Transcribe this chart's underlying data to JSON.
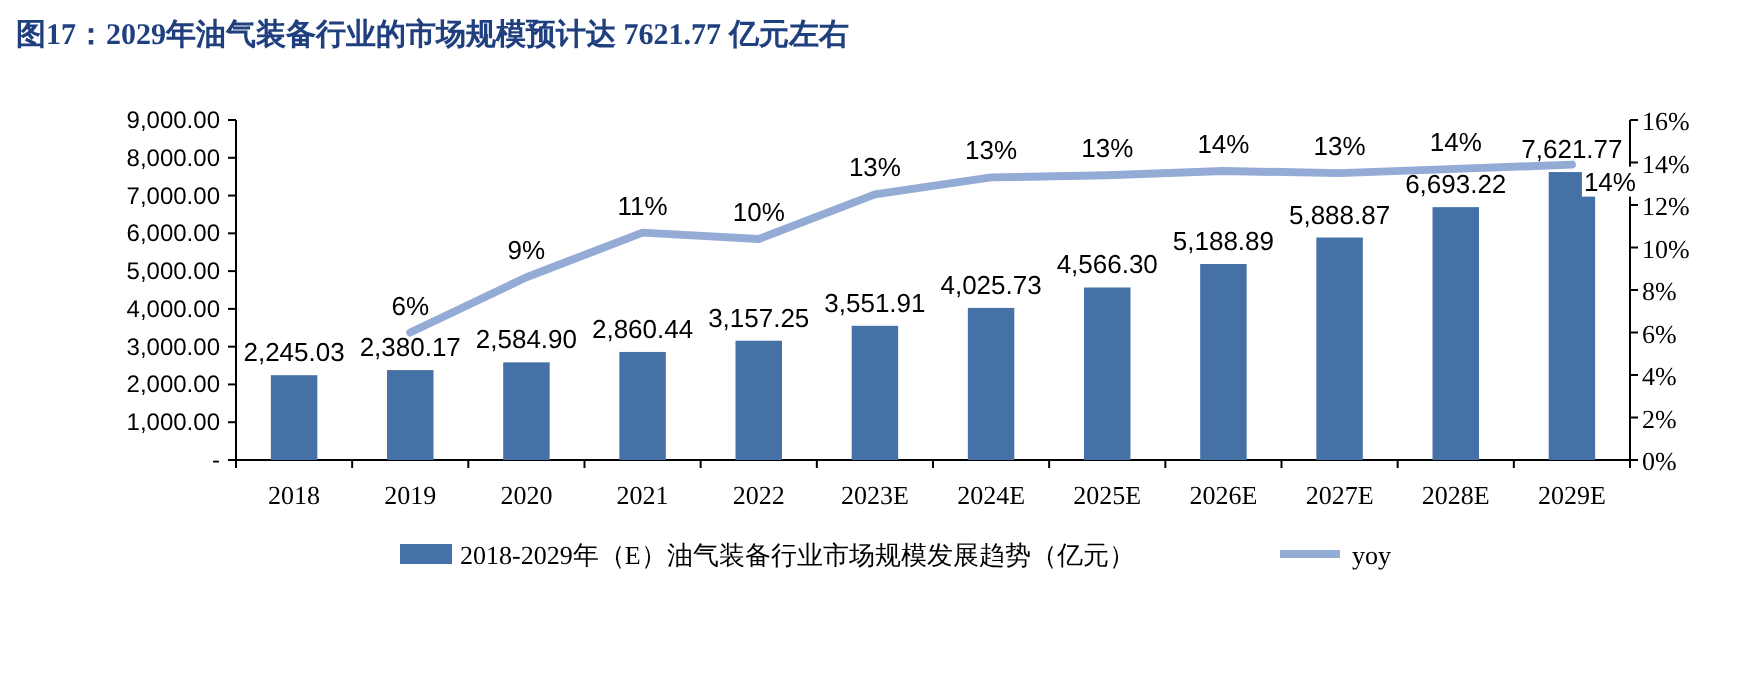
{
  "chart_data": {
    "type": "bar",
    "title": "图17：2029年油气装备行业的市场规模预计达 7621.77 亿元左右",
    "categories": [
      "2018",
      "2019",
      "2020",
      "2021",
      "2022",
      "2023E",
      "2024E",
      "2025E",
      "2026E",
      "2027E",
      "2028E",
      "2029E"
    ],
    "series": [
      {
        "name": "2018-2029年（E）油气装备行业市场规模发展趋势（亿元）",
        "color": "#4571a6",
        "values": [
          2245.03,
          2380.17,
          2584.9,
          2860.44,
          3157.25,
          3551.91,
          4025.73,
          4566.3,
          5188.89,
          5888.87,
          6693.22,
          7621.77
        ],
        "value_labels": [
          "2,245.03",
          "2,380.17",
          "2,584.90",
          "2,860.44",
          "3,157.25",
          "3,551.91",
          "4,025.73",
          "4,566.30",
          "5,188.89",
          "5,888.87",
          "6,693.22",
          "7,621.77"
        ]
      },
      {
        "name": "yoy",
        "type": "line",
        "axis": "y2",
        "color": "#94abd6",
        "values": [
          null,
          6.0,
          8.6,
          10.7,
          10.4,
          12.5,
          13.3,
          13.4,
          13.6,
          13.5,
          13.7,
          13.9
        ],
        "value_labels": [
          null,
          "6%",
          "9%",
          "11%",
          "10%",
          "13%",
          "13%",
          "13%",
          "14%",
          "13%",
          "14%",
          "14%"
        ]
      }
    ],
    "ylim": [
      0,
      9000
    ],
    "yticks": [
      {
        "value": 0,
        "label": "-"
      },
      {
        "value": 1000,
        "label": "1,000.00"
      },
      {
        "value": 2000,
        "label": "2,000.00"
      },
      {
        "value": 3000,
        "label": "3,000.00"
      },
      {
        "value": 4000,
        "label": "4,000.00"
      },
      {
        "value": 5000,
        "label": "5,000.00"
      },
      {
        "value": 6000,
        "label": "6,000.00"
      },
      {
        "value": 7000,
        "label": "7,000.00"
      },
      {
        "value": 8000,
        "label": "8,000.00"
      },
      {
        "value": 9000,
        "label": "9,000.00"
      }
    ],
    "y2lim": [
      0,
      16
    ],
    "y2ticks": [
      {
        "value": 0,
        "label": "0%"
      },
      {
        "value": 2,
        "label": "2%"
      },
      {
        "value": 4,
        "label": "4%"
      },
      {
        "value": 6,
        "label": "6%"
      },
      {
        "value": 8,
        "label": "8%"
      },
      {
        "value": 10,
        "label": "10%"
      },
      {
        "value": 12,
        "label": "12%"
      },
      {
        "value": 14,
        "label": "14%"
      },
      {
        "value": 16,
        "label": "16%"
      }
    ],
    "legend": "bottom",
    "grid": false,
    "marker": "none"
  }
}
